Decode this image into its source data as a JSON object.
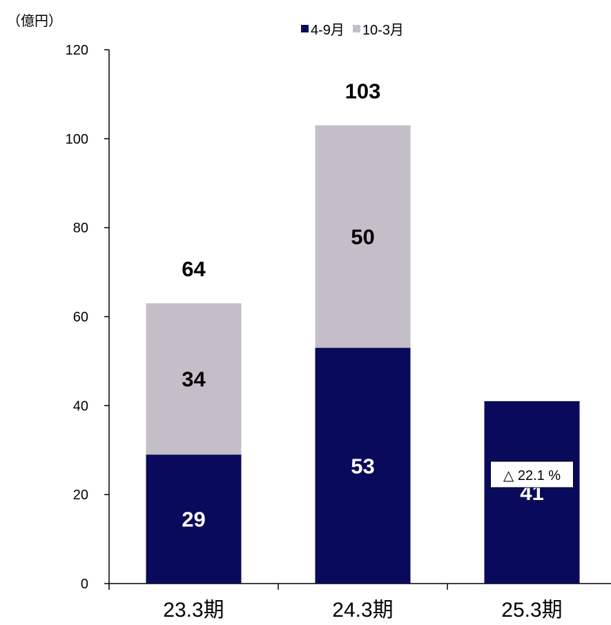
{
  "unit_label": "（億円）",
  "chart_data": {
    "type": "bar",
    "stacked": true,
    "categories": [
      "23.3期",
      "24.3期",
      "25.3期"
    ],
    "series": [
      {
        "name": "4-9月",
        "values": [
          29,
          53,
          41
        ],
        "color": "#0a0a5c",
        "label_color": "#ffffff"
      },
      {
        "name": "10-3月",
        "values": [
          34,
          50,
          null
        ],
        "color": "#c4bec8",
        "label_color": "#000000"
      }
    ],
    "totals": [
      64,
      103,
      null
    ],
    "annotation": {
      "category": "25.3期",
      "text": "△ 22.1 %"
    },
    "yticks": [
      "0",
      "20",
      "40",
      "60",
      "80",
      "100",
      "120"
    ],
    "ylim": [
      0,
      120
    ],
    "grid": false,
    "legend_position": "top"
  }
}
